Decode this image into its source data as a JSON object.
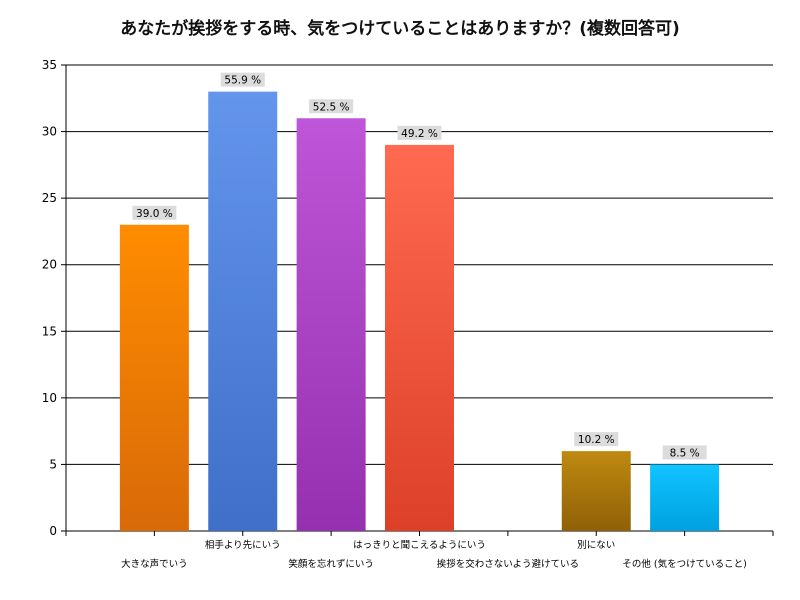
{
  "chart_data": {
    "type": "bar",
    "title": "あなたが挨拶をする時、気をつけていることはありますか？(複数回答可)",
    "xlabel": "",
    "ylabel": "",
    "ylim": [
      0,
      35
    ],
    "yticks": [
      0,
      5,
      10,
      15,
      20,
      25,
      30,
      35
    ],
    "grid": true,
    "categories": [
      "大きな声でいう",
      "相手より先にいう",
      "笑顔を忘れずにいう",
      "はっきりと聞こえるようにいう",
      "挨拶を交わさないよう避けている",
      "別にない",
      "その他 (気をつけていること)"
    ],
    "values": [
      23,
      33,
      31,
      29,
      0,
      6,
      5
    ],
    "data_labels": [
      "39.0 %",
      "55.9 %",
      "52.5 %",
      "49.2 %",
      "",
      "10.2 %",
      "8.5 %"
    ],
    "colors": [
      [
        "#ff8c00",
        "#d86a08"
      ],
      [
        "#6495ed",
        "#3f6fc8"
      ],
      [
        "#bf55d8",
        "#9530b0"
      ],
      [
        "#ff6a50",
        "#dc4028"
      ],
      [
        "#cccccc",
        "#aaaaaa"
      ],
      [
        "#bf8a10",
        "#8f6008"
      ],
      [
        "#10c4ff",
        "#00a0e0"
      ]
    ]
  }
}
